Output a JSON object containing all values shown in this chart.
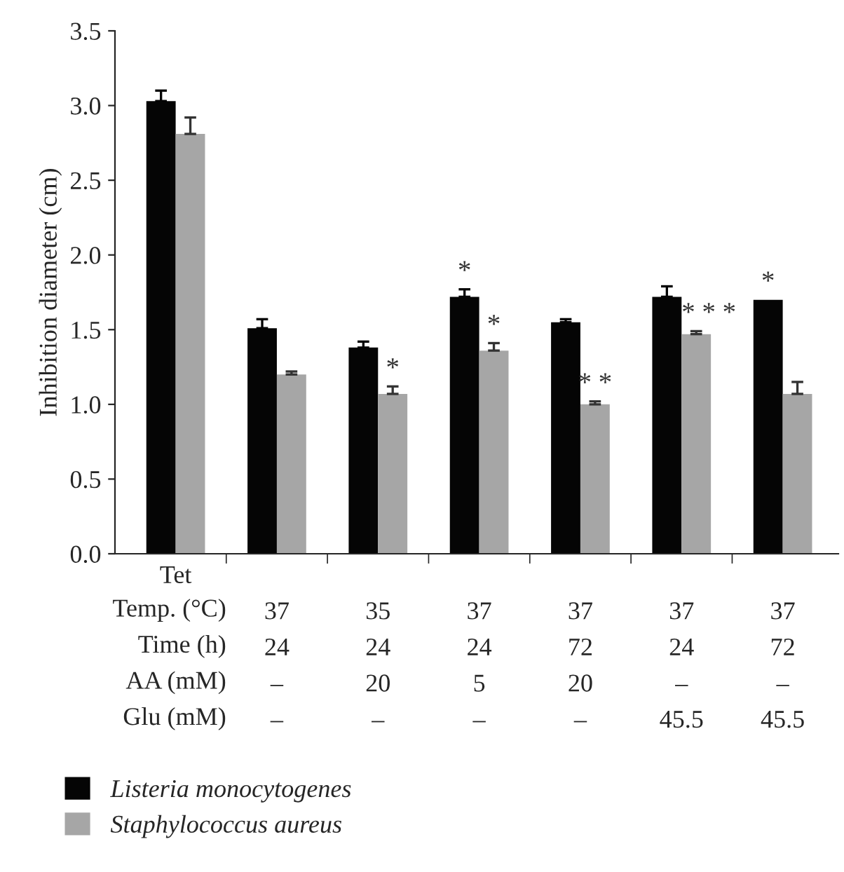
{
  "chart_data": {
    "type": "bar",
    "ylabel": "Inhibition diameter (cm)",
    "categories": [
      "Tet",
      "\n37\n24\n–\n–",
      "\n35\n24\n20\n–",
      "\n37\n24\n5\n–",
      "\n37\n72\n20\n–",
      "\n37\n24\n–\n45.5",
      "\n37\n72\n–\n45.5"
    ],
    "series": [
      {
        "name": "Listeria monocytogenes",
        "color": "#050505",
        "values": [
          3.03,
          1.51,
          1.38,
          1.72,
          1.55,
          1.72,
          1.7
        ],
        "errors": [
          0.07,
          0.06,
          0.04,
          0.05,
          0.02,
          0.07,
          null
        ],
        "value_labels": [
          null,
          null,
          null,
          "*",
          null,
          null,
          "*"
        ]
      },
      {
        "name": "Staphylococcus aureus",
        "color": "#a6a6a6",
        "values": [
          2.81,
          1.2,
          1.07,
          1.36,
          1.0,
          1.47,
          1.07
        ],
        "errors": [
          0.11,
          0.02,
          0.05,
          0.05,
          0.02,
          0.02,
          0.08
        ],
        "value_labels": [
          null,
          null,
          "*",
          "*",
          "* *",
          "* * *",
          null
        ]
      }
    ],
    "ylim": [
      0,
      3.5
    ],
    "yticks": [
      {
        "value": 0,
        "label": "0.0"
      },
      {
        "value": 0.5,
        "label": "0.5"
      },
      {
        "value": 1,
        "label": "1.0"
      },
      {
        "value": 1.5,
        "label": "1.5"
      },
      {
        "value": 2,
        "label": "2.0"
      },
      {
        "value": 2.5,
        "label": "2.5"
      },
      {
        "value": 3,
        "label": "3.0"
      },
      {
        "value": 3.5,
        "label": "3.5"
      }
    ],
    "annotations": [
      "\nTemp. (°C)\nTime (h)\nAA (mM)\nGlu (mM)"
    ],
    "legend": "bottom",
    "grid": false
  }
}
